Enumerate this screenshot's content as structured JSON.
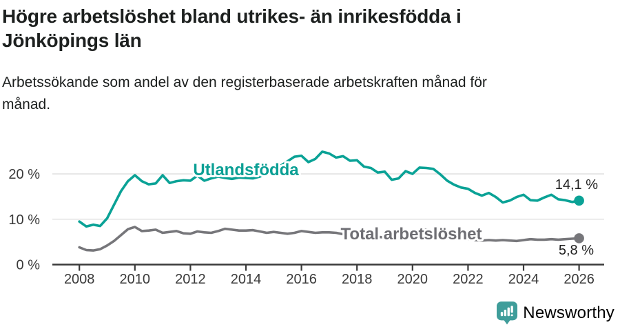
{
  "header": {
    "title": "Högre arbetslöshet bland utrikes- än inrikesfödda i Jönköpings län",
    "subtitle": "Arbetssökande som andel av den registerbaserade arbetskraften månad för månad."
  },
  "chart_data": {
    "type": "line",
    "unit": "%",
    "x_start": 2008,
    "x_step_years": 0.25,
    "x_end": 2026,
    "x_ticks": [
      "2008",
      "2010",
      "2012",
      "2014",
      "2016",
      "2018",
      "2020",
      "2022",
      "2024",
      "2026"
    ],
    "y_ticks": [
      {
        "value": 0,
        "label": "0 %"
      },
      {
        "value": 10,
        "label": "10 %"
      },
      {
        "value": 20,
        "label": "20 %"
      }
    ],
    "ylim": [
      0,
      26
    ],
    "grid": "horizontal",
    "legend_position": "inline-labels",
    "series": [
      {
        "name": "Utlandsfödda",
        "color": "#0aa296",
        "label_color": "#0a9f94",
        "end_label": "14,1 %",
        "end_value": 14.1,
        "values": [
          9.5,
          8.4,
          8.8,
          8.5,
          10.2,
          13.2,
          16.2,
          18.4,
          19.7,
          18.4,
          17.7,
          17.9,
          19.7,
          18.0,
          18.4,
          18.6,
          18.5,
          19.6,
          18.5,
          19.0,
          19.4,
          19.1,
          18.9,
          19.2,
          19.1,
          19.0,
          19.4,
          20.0,
          20.8,
          21.8,
          22.8,
          23.8,
          24.0,
          22.6,
          23.3,
          24.9,
          24.5,
          23.6,
          23.9,
          22.9,
          23.0,
          21.6,
          21.3,
          20.3,
          20.5,
          18.7,
          19.0,
          20.6,
          20.0,
          21.4,
          21.3,
          21.1,
          19.9,
          18.5,
          17.6,
          17.0,
          16.7,
          15.8,
          15.2,
          15.8,
          14.9,
          13.7,
          14.1,
          14.9,
          15.4,
          14.2,
          14.1,
          14.8,
          15.4,
          14.4,
          14.2,
          13.8,
          14.1
        ]
      },
      {
        "name": "Total arbetslöshet",
        "color": "#76767a",
        "label_color": "#6e6e73",
        "end_label": "5,8 %",
        "end_value": 5.8,
        "values": [
          3.8,
          3.2,
          3.1,
          3.4,
          4.2,
          5.2,
          6.5,
          7.8,
          8.3,
          7.4,
          7.5,
          7.7,
          7.0,
          7.2,
          7.4,
          6.9,
          6.8,
          7.3,
          7.1,
          7.0,
          7.4,
          7.9,
          7.7,
          7.5,
          7.5,
          7.6,
          7.3,
          7.0,
          7.2,
          7.0,
          6.8,
          7.0,
          7.4,
          7.2,
          7.0,
          7.1,
          7.1,
          7.0,
          6.7,
          6.5,
          6.4,
          6.2,
          6.3,
          6.1,
          6.0,
          5.9,
          6.1,
          6.3,
          6.6,
          7.5,
          7.7,
          7.4,
          7.0,
          6.6,
          6.2,
          5.9,
          5.6,
          5.4,
          5.3,
          5.4,
          5.3,
          5.4,
          5.3,
          5.2,
          5.4,
          5.6,
          5.5,
          5.5,
          5.6,
          5.5,
          5.6,
          5.7,
          5.8
        ]
      }
    ]
  },
  "colors": {
    "axis": "#3a3a3a",
    "grid": "#dcdcdc",
    "title_text": "#1d201f"
  },
  "footer": {
    "brand": "Newsworthy",
    "brand_color": "#3f9d9a"
  }
}
